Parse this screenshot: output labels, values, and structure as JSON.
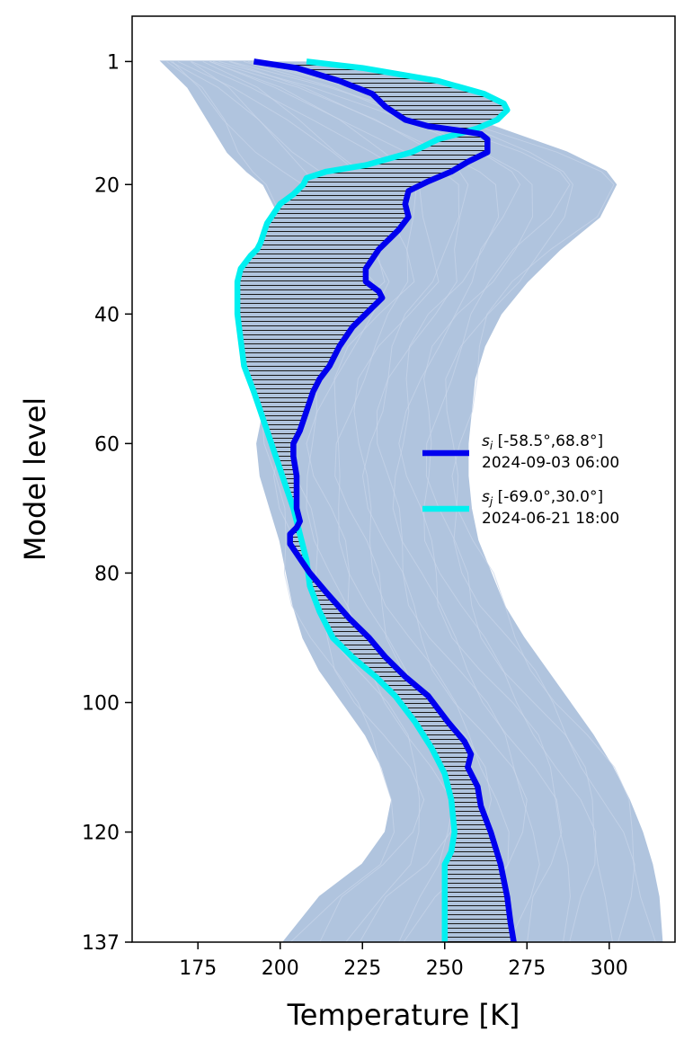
{
  "chart_data": {
    "type": "line",
    "title": "",
    "xlabel": "Temperature [K]",
    "ylabel": "Model level",
    "xlim": [
      155,
      320
    ],
    "ylim": [
      137,
      -6
    ],
    "y_inverted": true,
    "xticks": [
      175,
      200,
      225,
      250,
      275,
      300
    ],
    "yticks": [
      1,
      20,
      40,
      60,
      80,
      100,
      120,
      137
    ],
    "grid": false,
    "legend_position": "center-right",
    "hatch_between_series": true,
    "envelope": {
      "description_color": "#b0c4de",
      "min_temperature": [
        164,
        172,
        178,
        184,
        190,
        195,
        200,
        210,
        219,
        211,
        203,
        198,
        195,
        193,
        194,
        197,
        200,
        202,
        204,
        207,
        212,
        219,
        226,
        231,
        234,
        232,
        225,
        212,
        201
      ],
      "max_temperature": [
        192,
        226,
        259,
        287,
        299,
        302,
        297,
        285,
        275,
        267,
        262,
        259,
        258,
        257,
        257,
        258,
        260,
        264,
        268,
        274,
        281,
        288,
        295,
        301,
        306,
        310,
        313,
        315,
        316
      ],
      "levels": [
        1,
        5,
        10,
        15,
        18,
        20,
        25,
        30,
        35,
        40,
        45,
        50,
        55,
        60,
        65,
        70,
        75,
        80,
        85,
        90,
        95,
        100,
        105,
        110,
        115,
        120,
        125,
        130,
        137
      ]
    },
    "series": [
      {
        "name": "s_i [-58.5°,68.8°]",
        "sub": "i",
        "coords": "[-58.5°,68.8°]",
        "date": "2024-09-03 06:00",
        "color": "#0000ee",
        "points": [
          [
            192,
            1
          ],
          [
            205,
            2
          ],
          [
            218,
            4
          ],
          [
            228,
            6
          ],
          [
            232,
            8
          ],
          [
            238,
            10
          ],
          [
            245,
            11
          ],
          [
            255,
            11.7
          ],
          [
            261,
            12.2
          ],
          [
            263,
            13
          ],
          [
            263,
            15
          ],
          [
            257,
            16.5
          ],
          [
            252,
            18
          ],
          [
            245,
            19.5
          ],
          [
            239,
            21
          ],
          [
            238,
            23
          ],
          [
            239,
            25
          ],
          [
            236,
            27
          ],
          [
            234,
            28
          ],
          [
            232,
            29
          ],
          [
            230,
            30
          ],
          [
            226,
            33
          ],
          [
            226,
            35
          ],
          [
            230,
            36.5
          ],
          [
            231,
            37.5
          ],
          [
            226,
            40
          ],
          [
            222,
            42
          ],
          [
            218,
            45
          ],
          [
            215,
            48
          ],
          [
            212,
            50
          ],
          [
            210,
            52
          ],
          [
            208,
            55
          ],
          [
            206,
            58
          ],
          [
            204,
            60
          ],
          [
            204,
            62
          ],
          [
            205,
            65
          ],
          [
            205,
            68
          ],
          [
            205,
            70
          ],
          [
            206,
            72
          ],
          [
            205,
            73
          ],
          [
            203,
            74
          ],
          [
            203,
            75.5
          ],
          [
            205,
            77
          ],
          [
            209,
            80
          ],
          [
            214,
            83
          ],
          [
            221,
            87
          ],
          [
            227,
            90
          ],
          [
            232,
            93
          ],
          [
            238,
            96
          ],
          [
            245,
            99
          ],
          [
            251,
            103
          ],
          [
            256,
            106
          ],
          [
            258,
            108
          ],
          [
            257,
            110
          ],
          [
            259,
            112
          ],
          [
            260,
            113
          ],
          [
            261,
            116
          ],
          [
            264,
            120
          ],
          [
            267,
            125
          ],
          [
            269,
            130
          ],
          [
            270,
            134
          ],
          [
            271,
            137
          ]
        ]
      },
      {
        "name": "s_j [-69.0°,30.0°]",
        "sub": "j",
        "coords": "[-69.0°,30.0°]",
        "date": "2024-06-21 18:00",
        "color": "#00f0f0",
        "points": [
          [
            208,
            1
          ],
          [
            225,
            2
          ],
          [
            248,
            4
          ],
          [
            262,
            6
          ],
          [
            268,
            7.5
          ],
          [
            269,
            8.5
          ],
          [
            266,
            10
          ],
          [
            260,
            11.3
          ],
          [
            254,
            12.2
          ],
          [
            248,
            13
          ],
          [
            244,
            14
          ],
          [
            240,
            15
          ],
          [
            233,
            16
          ],
          [
            226,
            17
          ],
          [
            214,
            18
          ],
          [
            208,
            19
          ],
          [
            207,
            20
          ],
          [
            204,
            21.5
          ],
          [
            200,
            23
          ],
          [
            198,
            24.5
          ],
          [
            196,
            26
          ],
          [
            195,
            27.5
          ],
          [
            194,
            29
          ],
          [
            193,
            30
          ],
          [
            191,
            31
          ],
          [
            188,
            33
          ],
          [
            187,
            35
          ],
          [
            187,
            37
          ],
          [
            187,
            40
          ],
          [
            188,
            44
          ],
          [
            189,
            48
          ],
          [
            192,
            52
          ],
          [
            194,
            55
          ],
          [
            196,
            58
          ],
          [
            198,
            61
          ],
          [
            200,
            64
          ],
          [
            202,
            67
          ],
          [
            204,
            70
          ],
          [
            206,
            74
          ],
          [
            208,
            78
          ],
          [
            209,
            82
          ],
          [
            212,
            86
          ],
          [
            216,
            90
          ],
          [
            222,
            93
          ],
          [
            229,
            96
          ],
          [
            235,
            99
          ],
          [
            241,
            103
          ],
          [
            246,
            107
          ],
          [
            250,
            111
          ],
          [
            252,
            115
          ],
          [
            253,
            120
          ],
          [
            252,
            123
          ],
          [
            250,
            125
          ],
          [
            250,
            130
          ],
          [
            250,
            137
          ]
        ]
      }
    ]
  }
}
